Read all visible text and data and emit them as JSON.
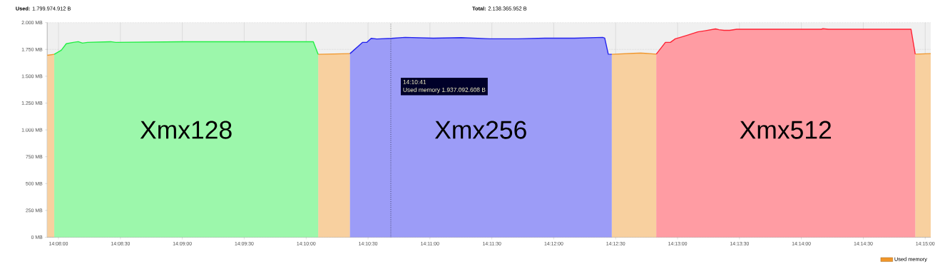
{
  "chart_data": {
    "type": "area",
    "annotations": [
      "**Used:** 1.799.974.912 B",
      "**Total:** 2.138.365.952 B",
      "Xmx128",
      "Xmx256",
      "Xmx512",
      "Used memory   1.937.092.608 B"
    ],
    "series": [
      {
        "name": "Used memory",
        "color": "#f0962a",
        "x": [
          14.13181,
          14.13276,
          null,
          14.16829,
          14.17257,
          null,
          14.20781,
          14.21171,
          14.2138,
          null,
          14.24866,
          14.25075
        ],
        "values": [
          1695,
          1704,
          null,
          1704,
          1711,
          null,
          1704,
          1717,
          1706,
          null,
          1706,
          1711
        ]
      },
      {
        "color": "#22ee44",
        "x": [
          14.13276,
          14.13371,
          14.13438,
          14.13533,
          14.13599,
          14.13656,
          14.13723,
          14.14036,
          14.14103,
          14.15053,
          14.16763,
          14.16829
        ],
        "values": [
          1704,
          1743,
          1803,
          1816,
          1822,
          1809,
          1816,
          1822,
          1816,
          1822,
          1822,
          1704
        ]
      },
      {
        "color": "#2222ee",
        "x": [
          14.17257,
          14.17428,
          14.17485,
          14.17542,
          14.17618,
          14.17817,
          14.17998,
          14.18378,
          14.18758,
          14.19138,
          14.19518,
          14.19898,
          14.20278,
          14.20658,
          14.20686,
          14.20734,
          14.20781
        ],
        "values": [
          1711,
          1816,
          1816,
          1853,
          1847,
          1853,
          1862,
          1855,
          1860,
          1849,
          1849,
          1855,
          1855,
          1862,
          1855,
          1706,
          1704
        ]
      },
      {
        "color": "#ff2233",
        "x": [
          14.2138,
          14.21503,
          14.2157,
          14.21636,
          14.21703,
          14.21798,
          14.2194,
          14.22035,
          14.22178,
          14.22225,
          14.22292,
          14.22368,
          14.22463,
          14.23603,
          14.23622,
          14.23698,
          14.24809,
          14.24866
        ],
        "values": [
          1706,
          1816,
          1816,
          1849,
          1862,
          1882,
          1914,
          1924,
          1941,
          1934,
          1928,
          1928,
          1938,
          1938,
          1943,
          1938,
          1938,
          1706
        ]
      }
    ],
    "xlim": [
      14.13181,
      14.25075
    ],
    "xticks": [
      {
        "value": 14.13333,
        "label": "14:08:00"
      },
      {
        "value": 14.14167,
        "label": "14:08:30"
      },
      {
        "value": 14.15,
        "label": "14:09:00"
      },
      {
        "value": 14.15833,
        "label": "14:09:30"
      },
      {
        "value": 14.16667,
        "label": "14:10:00"
      },
      {
        "value": 14.175,
        "label": "14:10:30"
      },
      {
        "value": 14.18333,
        "label": "14:11:00"
      },
      {
        "value": 14.19167,
        "label": "14:11:30"
      },
      {
        "value": 14.2,
        "label": "14:12:00"
      },
      {
        "value": 14.20833,
        "label": "14:12:30"
      },
      {
        "value": 14.21667,
        "label": "14:13:00"
      },
      {
        "value": 14.225,
        "label": "14:13:30"
      },
      {
        "value": 14.23333,
        "label": "14:14:00"
      },
      {
        "value": 14.24167,
        "label": "14:14:30"
      },
      {
        "value": 14.25,
        "label": "14:15:00"
      }
    ],
    "ylim": [
      0,
      2000
    ],
    "yticks": [
      {
        "value": 0,
        "label": "0 MB"
      },
      {
        "value": 250,
        "label": "250 MB"
      },
      {
        "value": 500,
        "label": "500 MB"
      },
      {
        "value": 750,
        "label": "750 MB"
      },
      {
        "value": 1000,
        "label": "1.000 MB"
      },
      {
        "value": 1250,
        "label": "1.250 MB"
      },
      {
        "value": 1500,
        "label": "1.500 MB"
      },
      {
        "value": 1750,
        "label": "1.750 MB"
      },
      {
        "value": 2000,
        "label": "2.000 MB"
      }
    ],
    "ref_lines": [
      {
        "axis": "x",
        "value": 14.17806,
        "label": "14:10:41",
        "line_style": "dotted",
        "color": "#000000"
      }
    ],
    "grid": true,
    "legend": "bottom right"
  }
}
